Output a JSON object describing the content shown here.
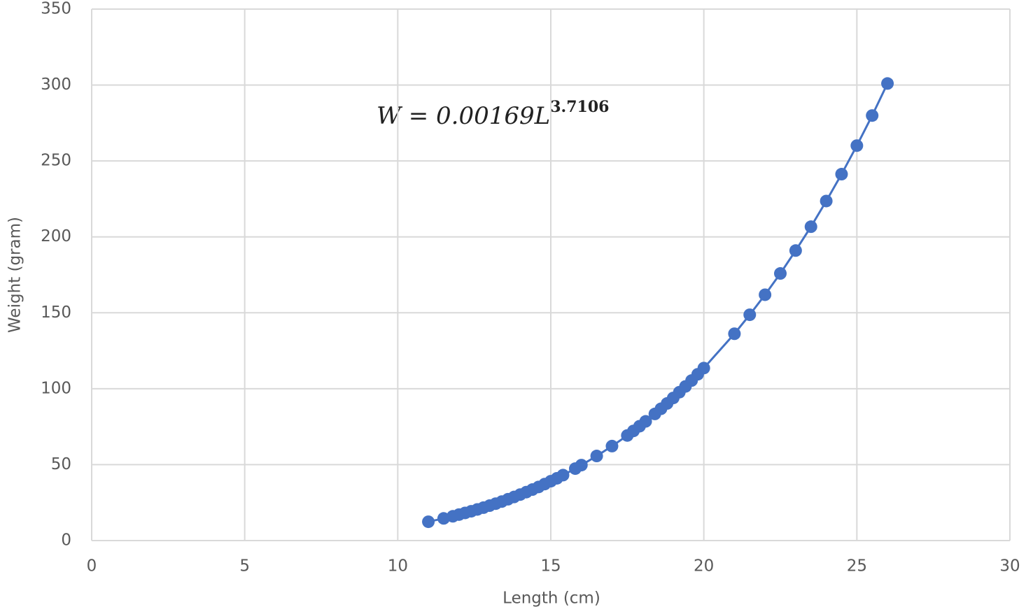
{
  "chart_data": {
    "type": "scatter_line",
    "x_label": "Length (cm)",
    "y_label": "Weight (gram)",
    "equation": {
      "base": "W = 0.00169L",
      "exponent": "3.7106"
    },
    "color": "#4472c4",
    "grid": true,
    "xlim": [
      0,
      30
    ],
    "xticks": [
      0,
      5,
      10,
      15,
      20,
      25,
      30
    ],
    "ylim": [
      0,
      350
    ],
    "yticks": [
      0,
      50,
      100,
      150,
      200,
      250,
      300,
      350
    ],
    "x": [
      11,
      11.5,
      11.8,
      12,
      12.2,
      12.4,
      12.6,
      12.8,
      13,
      13.2,
      13.4,
      13.6,
      13.8,
      14,
      14.2,
      14.4,
      14.6,
      14.8,
      15,
      15.2,
      15.4,
      15.8,
      16,
      16.5,
      17,
      17.5,
      17.7,
      17.9,
      18.1,
      18.4,
      18.6,
      18.8,
      19,
      19.2,
      19.4,
      19.6,
      19.8,
      20,
      21,
      21.5,
      22,
      22.5,
      23,
      23.5,
      24,
      24.5,
      25,
      25.5,
      26
    ],
    "values": [
      12.4,
      14.6,
      16.0,
      17.1,
      18.2,
      19.3,
      20.5,
      21.7,
      23.0,
      24.3,
      25.7,
      27.2,
      28.7,
      30.3,
      31.9,
      33.6,
      35.3,
      37.2,
      39.1,
      41.0,
      43.1,
      47.4,
      49.7,
      55.7,
      62.2,
      69.2,
      72.2,
      75.3,
      78.5,
      83.4,
      86.8,
      90.3,
      93.9,
      97.7,
      101.5,
      105.4,
      109.5,
      113.6,
      136.2,
      148.7,
      161.9,
      175.9,
      191.0,
      206.7,
      223.6,
      241.3,
      260.1,
      279.9,
      301
    ]
  }
}
